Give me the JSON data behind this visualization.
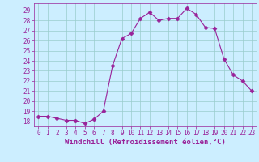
{
  "hours": [
    0,
    1,
    2,
    3,
    4,
    5,
    6,
    7,
    8,
    9,
    10,
    11,
    12,
    13,
    14,
    15,
    16,
    17,
    18,
    19,
    20,
    21,
    22,
    23
  ],
  "windchill": [
    18.5,
    18.5,
    18.3,
    18.1,
    18.1,
    17.8,
    18.2,
    19.0,
    23.5,
    26.2,
    26.7,
    28.2,
    28.8,
    28.0,
    28.2,
    28.2,
    29.2,
    28.6,
    27.3,
    27.2,
    24.2,
    22.6,
    22.0,
    21.0
  ],
  "line_color": "#992299",
  "marker": "D",
  "marker_size": 2.5,
  "bg_color": "#cceeff",
  "grid_color": "#99cccc",
  "ylim": [
    17.5,
    29.7
  ],
  "yticks": [
    18,
    19,
    20,
    21,
    22,
    23,
    24,
    25,
    26,
    27,
    28,
    29
  ],
  "xlabel": "Windchill (Refroidissement éolien,°C)",
  "xlabel_color": "#992299",
  "tick_color": "#992299",
  "axis_color": "#992299",
  "tick_fontsize": 5.5,
  "xlabel_fontsize": 6.5
}
